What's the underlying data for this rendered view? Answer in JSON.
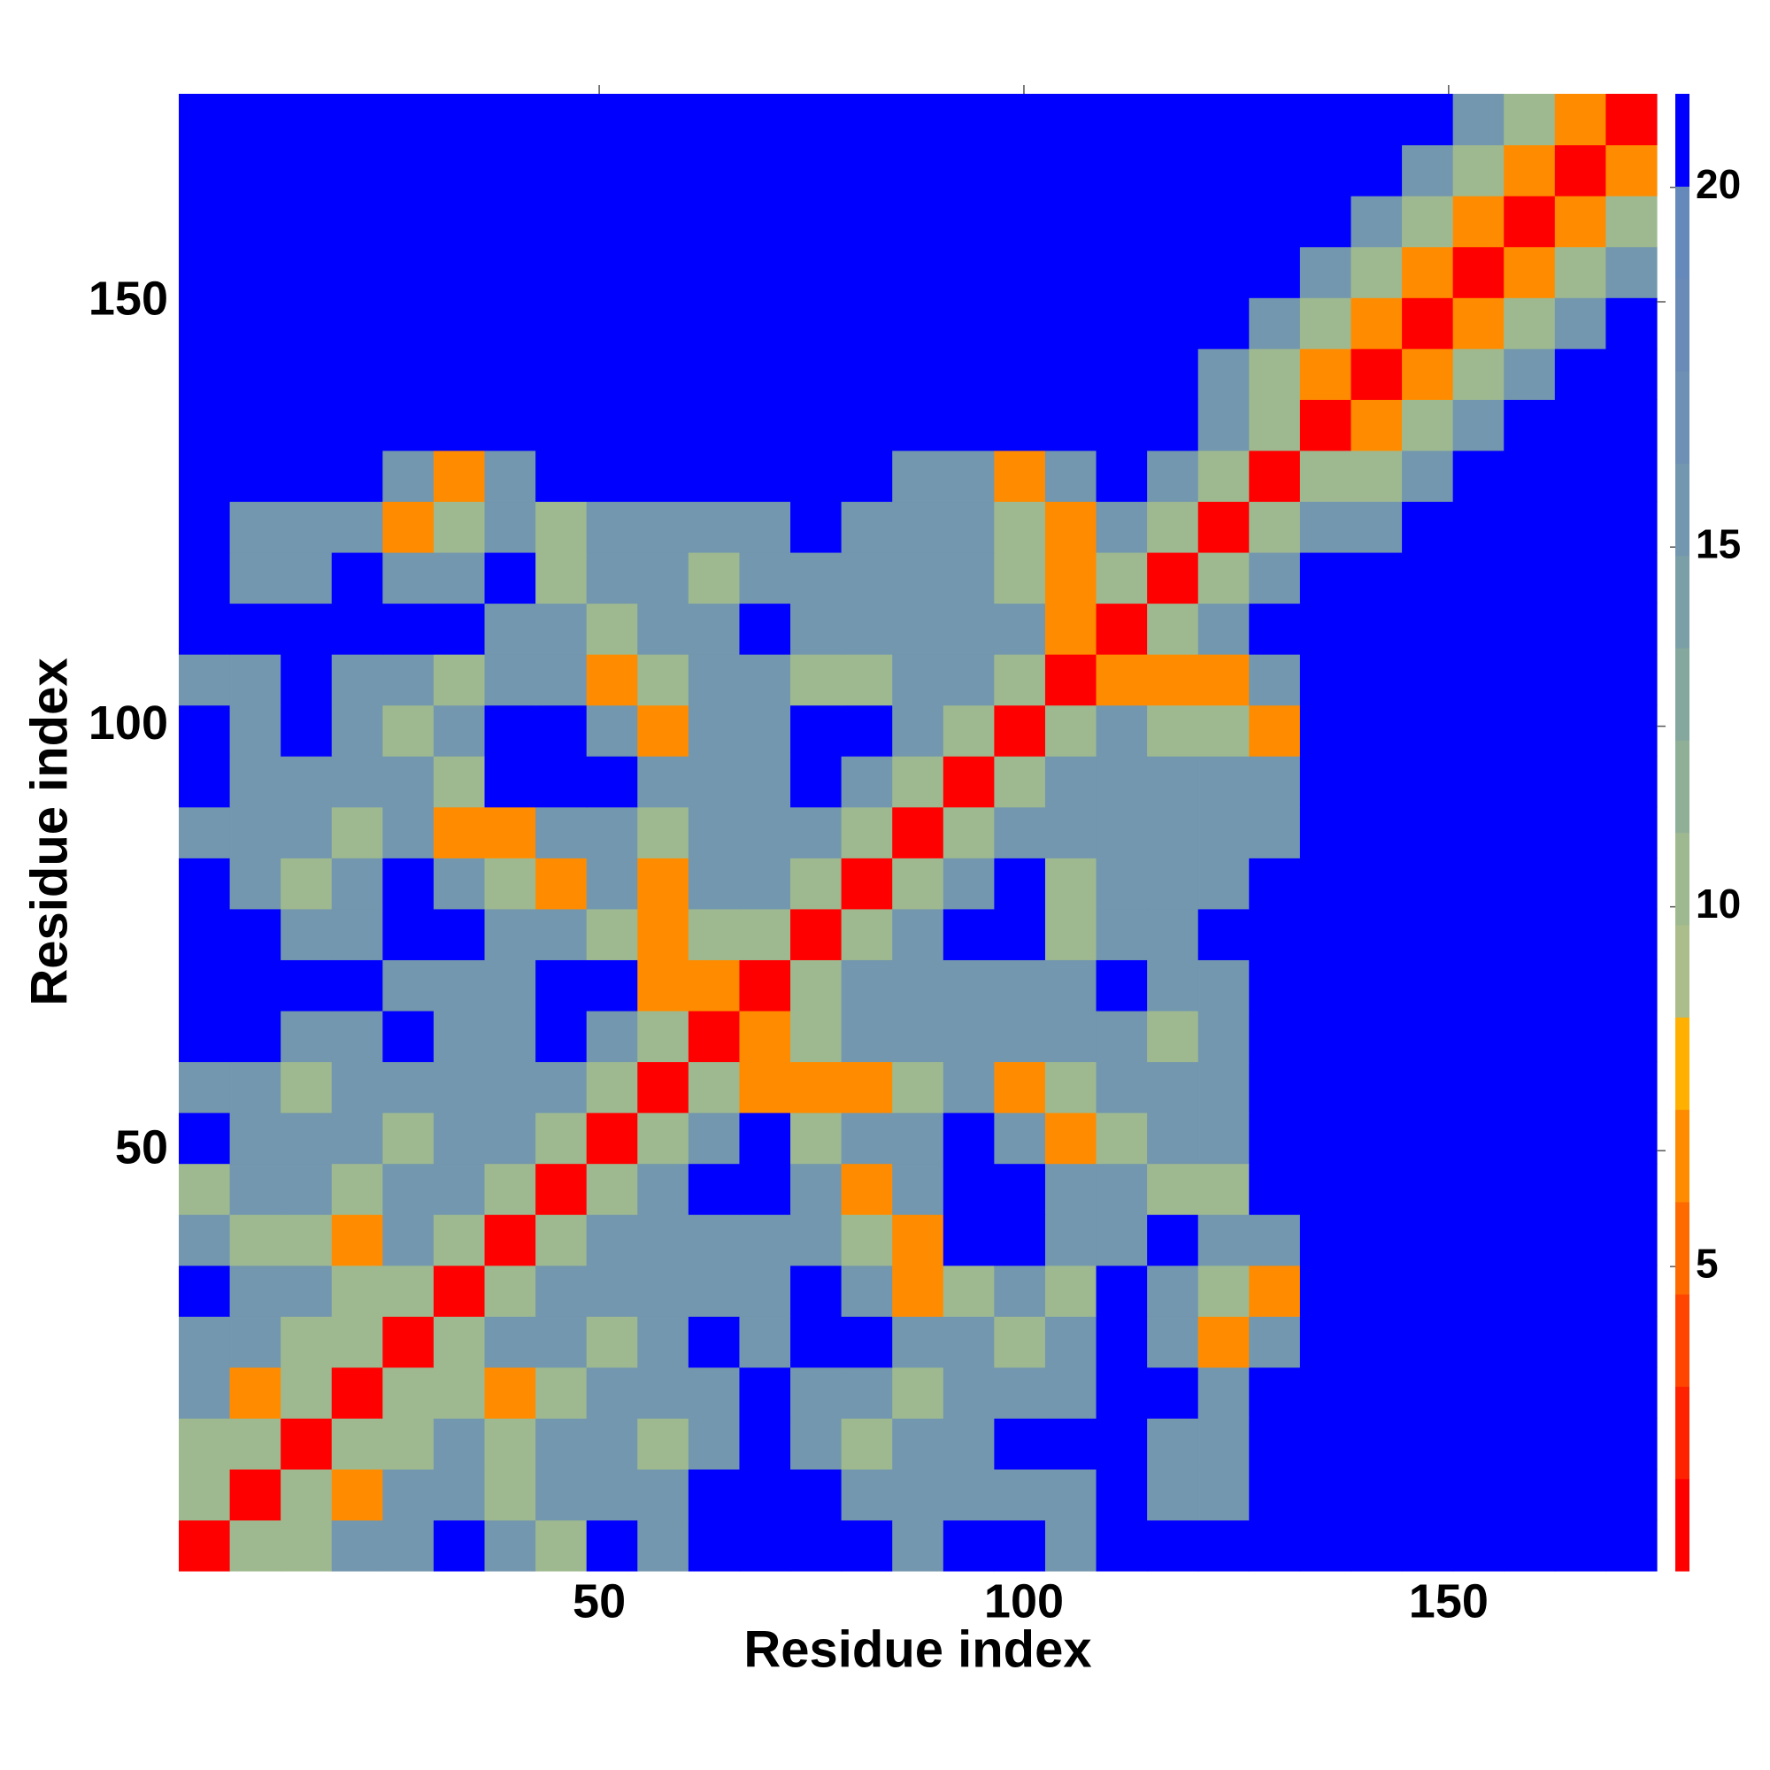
{
  "chart_data": {
    "type": "heatmap",
    "x_label": "Residue index",
    "y_label": "Residue index",
    "xbins": [
      0.5,
      6.5,
      12.5,
      18.5,
      24.5,
      30.5,
      36.5,
      42.5,
      48.5,
      54.5,
      60.5,
      66.5,
      72.5,
      78.5,
      84.5,
      90.5,
      96.5,
      102.5,
      108.5,
      114.5,
      120.5,
      126.5,
      132.5,
      138.5,
      144.5,
      150.5,
      156.5,
      162.5,
      168.5,
      174.5
    ],
    "ybins": [
      0.5,
      6.5,
      12.5,
      18.5,
      24.5,
      30.5,
      36.5,
      42.5,
      48.5,
      54.5,
      60.5,
      66.5,
      72.5,
      78.5,
      84.5,
      90.5,
      96.5,
      102.5,
      108.5,
      114.5,
      120.5,
      126.5,
      132.5,
      138.5,
      144.5,
      150.5,
      156.5,
      162.5,
      168.5,
      174.5
    ],
    "xlim": [
      0.5,
      174.5
    ],
    "ylim": [
      0.5,
      174.5
    ],
    "xticks": [
      50,
      100,
      150
    ],
    "yticks": [
      50,
      100,
      150
    ],
    "zlim": [
      0.77,
      21.3
    ],
    "zticks": [
      5,
      10,
      15,
      20
    ],
    "colors": [
      "#ff0000",
      "#ff2200",
      "#ff4500",
      "#ff6a00",
      "#ff8c00",
      "#ffb000",
      "#aabd8a",
      "#9eb990",
      "#90af97",
      "#84a89e",
      "#7a9fa6",
      "#7397ae",
      "#6d90b4",
      "#6a8bb8",
      "#6589bb",
      "#0000ff"
    ],
    "z": [
      [
        2,
        11,
        11,
        15,
        15,
        21,
        15,
        11,
        21,
        15,
        21,
        21,
        21,
        21,
        15,
        21,
        21,
        15,
        21,
        21,
        21,
        21,
        21,
        21,
        21,
        21,
        21,
        21,
        21
      ],
      [
        11,
        2,
        11,
        6,
        15,
        15,
        11,
        15,
        15,
        15,
        21,
        21,
        21,
        15,
        15,
        15,
        15,
        15,
        21,
        15,
        15,
        21,
        21,
        21,
        21,
        21,
        21,
        21,
        21
      ],
      [
        11,
        11,
        2,
        11,
        11,
        15,
        11,
        15,
        15,
        11,
        15,
        21,
        15,
        11,
        15,
        15,
        21,
        21,
        21,
        15,
        15,
        21,
        21,
        21,
        21,
        21,
        21,
        21,
        21
      ],
      [
        15,
        6,
        11,
        2,
        11,
        11,
        6,
        11,
        15,
        15,
        15,
        21,
        15,
        15,
        11,
        15,
        15,
        15,
        21,
        21,
        15,
        21,
        21,
        21,
        21,
        21,
        21,
        21,
        21
      ],
      [
        15,
        15,
        11,
        11,
        2,
        11,
        15,
        15,
        11,
        15,
        21,
        15,
        21,
        21,
        15,
        15,
        11,
        15,
        21,
        15,
        6,
        15,
        21,
        21,
        21,
        21,
        21,
        21,
        21
      ],
      [
        21,
        15,
        15,
        11,
        11,
        2,
        11,
        15,
        15,
        15,
        15,
        15,
        21,
        15,
        6,
        11,
        15,
        11,
        21,
        15,
        11,
        6,
        21,
        21,
        21,
        21,
        21,
        21,
        21
      ],
      [
        15,
        11,
        11,
        6,
        15,
        11,
        2,
        11,
        15,
        15,
        15,
        15,
        15,
        11,
        6,
        21,
        21,
        15,
        15,
        21,
        15,
        15,
        21,
        21,
        21,
        21,
        21,
        21,
        21
      ],
      [
        11,
        15,
        15,
        11,
        15,
        15,
        11,
        2,
        11,
        15,
        21,
        21,
        15,
        6,
        15,
        21,
        21,
        15,
        15,
        11,
        11,
        21,
        21,
        21,
        21,
        21,
        21,
        21,
        21
      ],
      [
        21,
        15,
        15,
        15,
        11,
        15,
        15,
        11,
        2,
        11,
        15,
        21,
        11,
        15,
        15,
        21,
        15,
        6,
        11,
        15,
        15,
        21,
        21,
        21,
        21,
        21,
        21,
        21,
        21
      ],
      [
        15,
        15,
        11,
        15,
        15,
        15,
        15,
        15,
        11,
        2,
        11,
        6,
        6,
        6,
        11,
        15,
        6,
        11,
        15,
        15,
        15,
        21,
        21,
        21,
        21,
        21,
        21,
        21,
        21
      ],
      [
        21,
        21,
        15,
        15,
        21,
        15,
        15,
        21,
        15,
        11,
        2,
        6,
        11,
        15,
        15,
        15,
        15,
        15,
        15,
        11,
        15,
        21,
        21,
        21,
        21,
        21,
        21,
        21,
        21
      ],
      [
        21,
        21,
        21,
        21,
        15,
        15,
        15,
        21,
        21,
        6,
        6,
        2,
        11,
        15,
        15,
        15,
        15,
        15,
        21,
        15,
        15,
        21,
        21,
        21,
        21,
        21,
        21,
        21,
        21
      ],
      [
        21,
        21,
        15,
        15,
        21,
        21,
        15,
        15,
        11,
        6,
        11,
        11,
        2,
        11,
        15,
        21,
        21,
        11,
        15,
        15,
        21,
        21,
        21,
        21,
        21,
        21,
        21,
        21,
        21
      ],
      [
        21,
        15,
        11,
        15,
        21,
        15,
        11,
        6,
        15,
        6,
        15,
        15,
        11,
        2,
        11,
        15,
        21,
        11,
        15,
        15,
        15,
        21,
        21,
        21,
        21,
        21,
        21,
        21,
        21
      ],
      [
        15,
        15,
        15,
        11,
        15,
        6,
        6,
        15,
        15,
        11,
        15,
        15,
        15,
        11,
        2,
        11,
        15,
        15,
        15,
        15,
        15,
        15,
        21,
        21,
        21,
        21,
        21,
        21,
        21
      ],
      [
        21,
        15,
        15,
        15,
        15,
        11,
        21,
        21,
        21,
        15,
        15,
        15,
        21,
        15,
        11,
        2,
        11,
        15,
        15,
        15,
        15,
        15,
        21,
        21,
        21,
        21,
        21,
        21,
        21
      ],
      [
        21,
        15,
        21,
        15,
        11,
        15,
        21,
        21,
        15,
        6,
        15,
        15,
        21,
        21,
        15,
        11,
        2,
        11,
        15,
        11,
        11,
        6,
        21,
        21,
        21,
        21,
        21,
        21,
        21
      ],
      [
        15,
        15,
        21,
        15,
        15,
        11,
        15,
        15,
        6,
        11,
        15,
        15,
        11,
        11,
        15,
        15,
        11,
        2,
        6,
        6,
        6,
        15,
        21,
        21,
        21,
        21,
        21,
        21,
        21
      ],
      [
        21,
        21,
        21,
        21,
        21,
        21,
        15,
        15,
        11,
        15,
        15,
        21,
        15,
        15,
        15,
        15,
        15,
        6,
        2,
        11,
        15,
        21,
        21,
        21,
        21,
        21,
        21,
        21,
        21
      ],
      [
        21,
        15,
        15,
        21,
        15,
        15,
        21,
        11,
        15,
        15,
        11,
        15,
        15,
        15,
        15,
        15,
        11,
        6,
        11,
        2,
        11,
        15,
        21,
        21,
        21,
        21,
        21,
        21,
        21
      ],
      [
        21,
        15,
        15,
        15,
        6,
        11,
        15,
        11,
        15,
        15,
        15,
        15,
        21,
        15,
        15,
        15,
        11,
        6,
        15,
        11,
        2,
        11,
        15,
        15,
        21,
        21,
        21,
        21,
        21
      ],
      [
        21,
        21,
        21,
        21,
        15,
        6,
        15,
        21,
        21,
        21,
        21,
        21,
        21,
        21,
        15,
        15,
        6,
        15,
        21,
        15,
        11,
        2,
        11,
        11,
        15,
        21,
        21,
        21,
        21
      ],
      [
        21,
        21,
        21,
        21,
        21,
        21,
        21,
        21,
        21,
        21,
        21,
        21,
        21,
        21,
        21,
        21,
        21,
        21,
        21,
        21,
        15,
        11,
        2,
        6,
        11,
        15,
        21,
        21,
        21
      ],
      [
        21,
        21,
        21,
        21,
        21,
        21,
        21,
        21,
        21,
        21,
        21,
        21,
        21,
        21,
        21,
        21,
        21,
        21,
        21,
        21,
        15,
        11,
        6,
        2,
        6,
        11,
        15,
        21,
        21
      ],
      [
        21,
        21,
        21,
        21,
        21,
        21,
        21,
        21,
        21,
        21,
        21,
        21,
        21,
        21,
        21,
        21,
        21,
        21,
        21,
        21,
        21,
        15,
        11,
        6,
        2,
        6,
        11,
        15,
        21
      ],
      [
        21,
        21,
        21,
        21,
        21,
        21,
        21,
        21,
        21,
        21,
        21,
        21,
        21,
        21,
        21,
        21,
        21,
        21,
        21,
        21,
        21,
        21,
        15,
        11,
        6,
        2,
        6,
        11,
        15
      ],
      [
        21,
        21,
        21,
        21,
        21,
        21,
        21,
        21,
        21,
        21,
        21,
        21,
        21,
        21,
        21,
        21,
        21,
        21,
        21,
        21,
        21,
        21,
        21,
        15,
        11,
        6,
        2,
        6,
        11
      ],
      [
        21,
        21,
        21,
        21,
        21,
        21,
        21,
        21,
        21,
        21,
        21,
        21,
        21,
        21,
        21,
        21,
        21,
        21,
        21,
        21,
        21,
        21,
        21,
        21,
        15,
        11,
        6,
        2,
        6
      ],
      [
        21,
        21,
        21,
        21,
        21,
        21,
        21,
        21,
        21,
        21,
        21,
        21,
        21,
        21,
        21,
        21,
        21,
        21,
        21,
        21,
        21,
        21,
        21,
        21,
        21,
        15,
        11,
        6,
        2
      ]
    ]
  }
}
